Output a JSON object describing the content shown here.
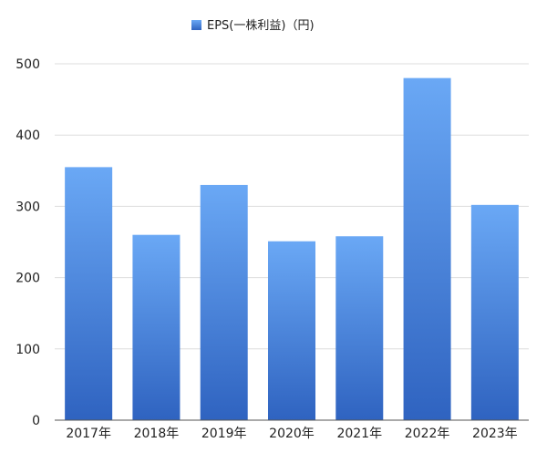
{
  "chart_data": {
    "type": "bar",
    "categories": [
      "2017年",
      "2018年",
      "2019年",
      "2020年",
      "2021年",
      "2022年",
      "2023年"
    ],
    "series": [
      {
        "name": "EPS(一株利益)（円)",
        "values": [
          355,
          260,
          330,
          251,
          258,
          480,
          302
        ]
      }
    ],
    "ylim": [
      0,
      500
    ],
    "yticks": [
      "0",
      "100",
      "200",
      "300",
      "400",
      "500"
    ],
    "grid": true,
    "legend": "top-center",
    "colors": {
      "bar_top": "#6aa8f5",
      "bar_bottom": "#2f63c0",
      "grid": "#dddddd",
      "axis": "#555555"
    }
  }
}
